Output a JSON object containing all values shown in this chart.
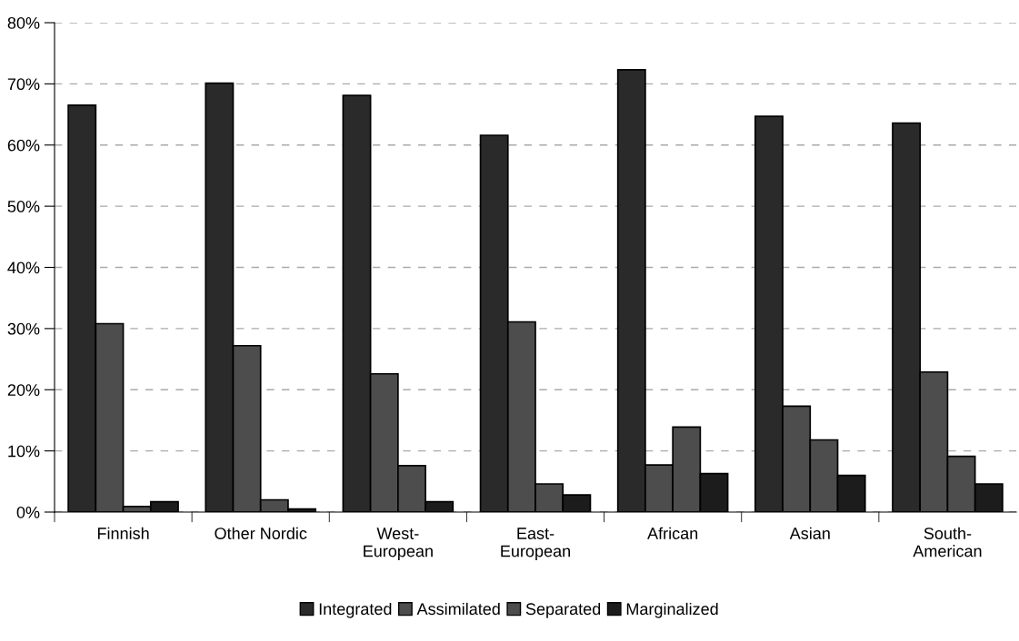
{
  "chart_data": {
    "type": "bar",
    "categories": [
      "Finnish",
      "Other Nordic",
      "West-\nEuropean",
      "East-\nEuropean",
      "African",
      "Asian",
      "South-\nAmerican"
    ],
    "series": [
      {
        "name": "Integrated",
        "color": "#2a2a2a",
        "values": [
          66.5,
          70.1,
          68.1,
          61.6,
          72.3,
          64.7,
          63.6
        ]
      },
      {
        "name": "Assimilated",
        "color": "#4d4d4d",
        "values": [
          30.8,
          27.2,
          22.6,
          31.1,
          7.7,
          17.3,
          22.9
        ]
      },
      {
        "name": "Separated",
        "color": "#4d4d4d",
        "values": [
          0.9,
          2.0,
          7.6,
          4.6,
          13.9,
          11.8,
          9.1
        ]
      },
      {
        "name": "Marginalized",
        "color": "#1c1c1c",
        "values": [
          1.7,
          0.5,
          1.7,
          2.8,
          6.3,
          6.0,
          4.6
        ]
      }
    ],
    "ylim": [
      0,
      80
    ],
    "yticks": [
      {
        "value": 0,
        "label": "0%"
      },
      {
        "value": 10,
        "label": "10%"
      },
      {
        "value": 20,
        "label": "20%"
      },
      {
        "value": 30,
        "label": "30%"
      },
      {
        "value": 40,
        "label": "40%"
      },
      {
        "value": 50,
        "label": "50%"
      },
      {
        "value": 60,
        "label": "60%"
      },
      {
        "value": 70,
        "label": "70%"
      },
      {
        "value": 80,
        "label": "80%"
      }
    ],
    "grid": "y",
    "legend": "bottom"
  }
}
